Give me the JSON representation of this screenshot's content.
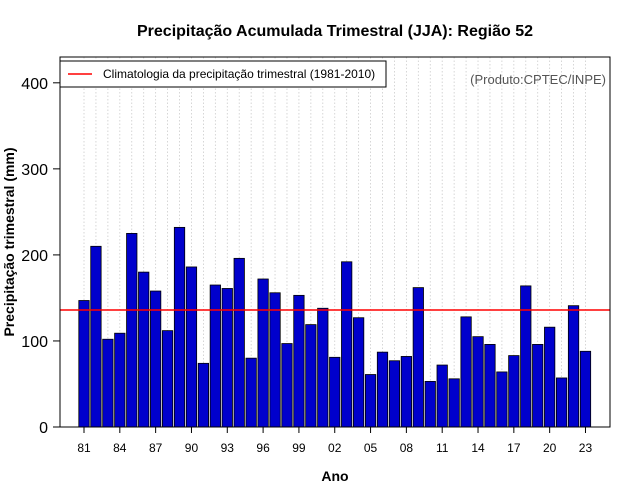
{
  "chart_data": {
    "type": "bar",
    "title": "Precipitação Acumulada Trimestral (JJA): Região 52",
    "xlabel": "Ano",
    "ylabel": "Precipitação trimestral (mm)",
    "credit": "(Produto:CPTEC/INPE)",
    "legend": {
      "label": "Climatologia da precipitação trimestral (1981-2010)",
      "placement": "top-left"
    },
    "climatology": 136,
    "ylim": [
      0,
      430
    ],
    "yticks": [
      0,
      100,
      200,
      300,
      400
    ],
    "ytick_labels": [
      "0",
      "100",
      "200",
      "300",
      "400"
    ],
    "grid": "vertical dotted",
    "categories": [
      1981,
      1982,
      1983,
      1984,
      1985,
      1986,
      1987,
      1988,
      1989,
      1990,
      1991,
      1992,
      1993,
      1994,
      1995,
      1996,
      1997,
      1998,
      1999,
      2000,
      2001,
      2002,
      2003,
      2004,
      2005,
      2006,
      2007,
      2008,
      2009,
      2010,
      2011,
      2012,
      2013,
      2014,
      2015,
      2016,
      2017,
      2018,
      2019,
      2020,
      2021,
      2022,
      2023
    ],
    "values": [
      147,
      210,
      102,
      109,
      225,
      180,
      158,
      112,
      232,
      186,
      74,
      165,
      161,
      196,
      80,
      172,
      156,
      97,
      153,
      119,
      138,
      81,
      192,
      127,
      61,
      87,
      77,
      82,
      162,
      53,
      72,
      56,
      128,
      105,
      96,
      64,
      83,
      164,
      96,
      116,
      57,
      141,
      88
    ],
    "xtick_years": [
      1981,
      1984,
      1987,
      1990,
      1993,
      1996,
      1999,
      2002,
      2005,
      2008,
      2011,
      2014,
      2017,
      2020,
      2023
    ],
    "xtick_labels": [
      "81",
      "84",
      "87",
      "90",
      "93",
      "96",
      "99",
      "02",
      "05",
      "08",
      "11",
      "14",
      "17",
      "20",
      "23"
    ],
    "colors": {
      "bar_fill": "#0000cc",
      "bar_stroke": "#000000",
      "climatology_line": "#ff0000",
      "grid": "#cccccc"
    }
  }
}
